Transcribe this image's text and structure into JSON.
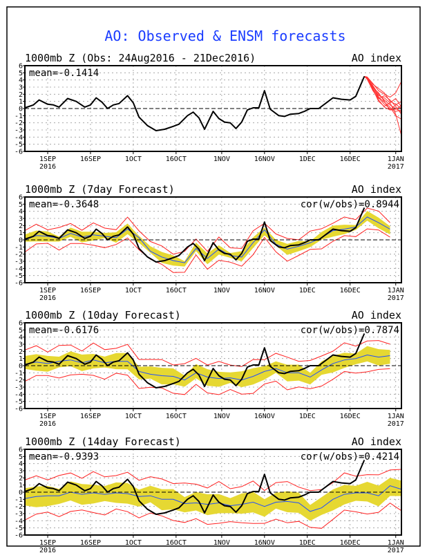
{
  "title": "AO: Observed & ENSM forecasts",
  "colors": {
    "title": "#1a3cff",
    "obs": "#000000",
    "mean": "#1f4dff",
    "spread": "#e6d832",
    "range": "#ff2020",
    "ens": "#ff3030"
  },
  "chart_data": {
    "type": "line",
    "x_unit": "days since 24Aug2016",
    "xlim": [
      0,
      132
    ],
    "ylim": [
      -6,
      6
    ],
    "yticks": [
      6,
      5,
      4,
      3,
      2,
      1,
      0,
      -1,
      -2,
      -3,
      -4,
      -5,
      -6
    ],
    "xticks": [
      {
        "day": 8,
        "label": "1SEP",
        "year": "2016"
      },
      {
        "day": 23,
        "label": "16SEP"
      },
      {
        "day": 38,
        "label": "1OCT"
      },
      {
        "day": 53,
        "label": "16OCT"
      },
      {
        "day": 69,
        "label": "1NOV"
      },
      {
        "day": 84,
        "label": "16NOV"
      },
      {
        "day": 99,
        "label": "1DEC"
      },
      {
        "day": 114,
        "label": "16DEC"
      },
      {
        "day": 130,
        "label": "1JAN",
        "year": "2017"
      }
    ],
    "observed": {
      "days": [
        0,
        3,
        5,
        8,
        10,
        12,
        15,
        18,
        21,
        23,
        25,
        27,
        29,
        31,
        33,
        36,
        38,
        40,
        43,
        46,
        49,
        52,
        54,
        57,
        59,
        61,
        63,
        66,
        68,
        70,
        72,
        74,
        76,
        78,
        80,
        82,
        84,
        86,
        89,
        91,
        93,
        96,
        98,
        100,
        103,
        106,
        108,
        111,
        114,
        116,
        119
      ],
      "values": [
        0.1,
        0.5,
        1.2,
        0.6,
        0.5,
        0.2,
        1.4,
        1.0,
        0.2,
        0.5,
        1.5,
        0.9,
        0.0,
        0.5,
        0.7,
        1.8,
        0.8,
        -1.2,
        -2.4,
        -3.1,
        -2.9,
        -2.5,
        -2.2,
        -1.0,
        -0.5,
        -1.3,
        -2.9,
        -0.4,
        -1.4,
        -1.9,
        -2.0,
        -2.8,
        -1.9,
        -0.2,
        0.1,
        0.1,
        2.5,
        -0.1,
        -1.0,
        -1.1,
        -0.8,
        -0.7,
        -0.4,
        0.0,
        0.0,
        0.9,
        1.5,
        1.3,
        1.2,
        1.7,
        4.5
      ]
    },
    "panels": [
      {
        "title": "1000mb Z (Obs: 24Aug2016 - 21Dec2016)",
        "label": "AO index",
        "mean_text": "mean=-0.1414",
        "ensemble": {
          "days": [
            119,
            120,
            122,
            124,
            126,
            128,
            130,
            132
          ],
          "members": [
            [
              4.5,
              4.3,
              3.2,
              2.0,
              1.2,
              0.5,
              0.0,
              -0.5
            ],
            [
              4.5,
              4.2,
              2.8,
              1.5,
              0.6,
              0.0,
              -0.4,
              -0.2
            ],
            [
              4.5,
              4.4,
              3.5,
              2.5,
              2.0,
              1.6,
              2.2,
              3.8
            ],
            [
              4.5,
              4.1,
              2.6,
              1.2,
              0.2,
              -0.2,
              0.5,
              1.0
            ],
            [
              4.5,
              4.3,
              3.0,
              1.8,
              1.5,
              0.8,
              -0.8,
              -3.8
            ],
            [
              4.5,
              4.2,
              2.9,
              2.2,
              1.0,
              -0.2,
              -0.1,
              0.4
            ],
            [
              4.5,
              4.4,
              3.4,
              2.8,
              2.2,
              1.0,
              0.6,
              0.0
            ],
            [
              4.5,
              4.2,
              2.7,
              1.0,
              0.3,
              0.8,
              1.4,
              0.2
            ],
            [
              4.5,
              4.3,
              3.1,
              1.6,
              0.9,
              0.2,
              -1.0,
              -1.5
            ],
            [
              4.5,
              4.1,
              2.5,
              1.4,
              1.8,
              1.2,
              0.3,
              -0.8
            ]
          ]
        }
      },
      {
        "title": "1000mb Z (7day Forecast)",
        "label": "AO index",
        "mean_text": "mean=-0.3648",
        "cor_text": "cor(w/obs)=0.8944",
        "forecast": {
          "start": 0,
          "step": 4,
          "mean": [
            0.0,
            0.6,
            0.5,
            0.2,
            0.9,
            0.4,
            0.7,
            0.5,
            0.3,
            1.5,
            0.3,
            -1.6,
            -2.4,
            -2.9,
            -3.2,
            -1.2,
            -2.6,
            -1.3,
            -2.2,
            -2.4,
            -0.4,
            1.4,
            -0.6,
            -1.3,
            -0.9,
            -0.4,
            0.3,
            1.3,
            1.5,
            1.8,
            3.2,
            2.4,
            1.5
          ],
          "spread": 0.6,
          "range": 1.3
        }
      },
      {
        "title": "1000mb Z (10day Forecast)",
        "label": "AO index",
        "mean_text": "mean=-0.6176",
        "cor_text": "cor(w/obs)=0.7874",
        "forecast": {
          "start": 0,
          "step": 4,
          "mean": [
            0.2,
            0.5,
            0.3,
            0.6,
            0.8,
            0.4,
            0.8,
            0.4,
            0.6,
            0.6,
            -0.8,
            -1.2,
            -1.4,
            -1.5,
            -2.0,
            -1.0,
            -1.6,
            -1.8,
            -1.7,
            -2.0,
            -1.5,
            -0.8,
            -0.4,
            -1.0,
            -1.0,
            -1.6,
            -0.6,
            0.3,
            0.8,
            1.0,
            1.5,
            1.2,
            1.4
          ],
          "spread": 1.0,
          "range": 2.0
        }
      },
      {
        "title": "1000mb Z (14day Forecast)",
        "label": "AO index",
        "mean_text": "mean=-0.9393",
        "cor_text": "cor(w/obs)=0.4214",
        "forecast": {
          "start": 0,
          "step": 4,
          "mean": [
            -0.9,
            -0.6,
            -0.5,
            -0.5,
            0.0,
            -0.3,
            -0.1,
            -0.3,
            -0.1,
            -0.2,
            -0.6,
            -0.5,
            -1.0,
            -1.0,
            -1.6,
            -1.5,
            -1.7,
            -1.5,
            -1.9,
            -1.7,
            -1.4,
            -2.0,
            -1.4,
            -1.3,
            -1.5,
            -2.7,
            -2.2,
            -1.0,
            -0.3,
            -0.1,
            -0.1,
            -0.5,
            0.9,
            0.4
          ],
          "spread": 1.3,
          "range": 2.6
        }
      }
    ]
  }
}
